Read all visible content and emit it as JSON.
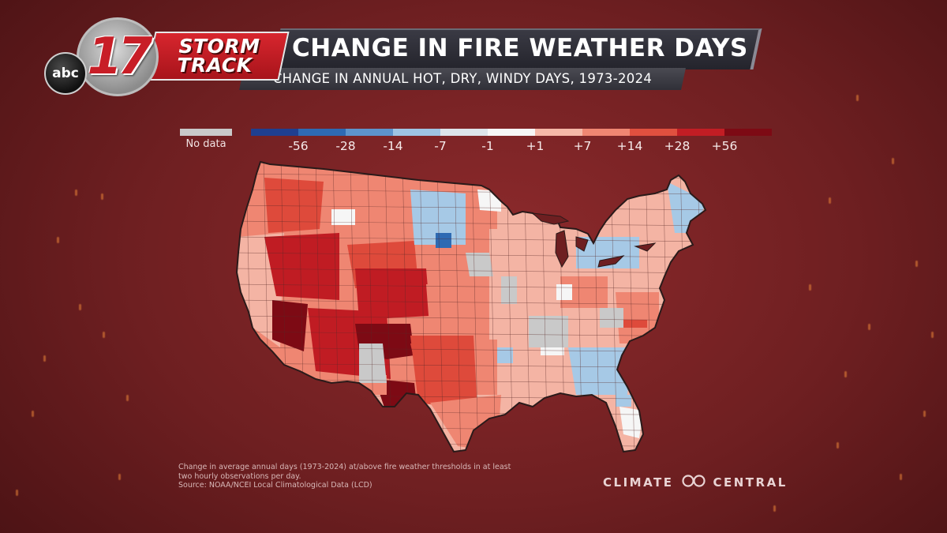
{
  "header": {
    "network_logo": "abc",
    "channel_number": "17",
    "brand_line1": "STORM",
    "brand_line2": "TRACK",
    "title": "CHANGE IN FIRE WEATHER DAYS",
    "subtitle": "CHANGE IN ANNUAL HOT, DRY, WINDY DAYS, 1973-2024"
  },
  "legend": {
    "no_data": {
      "label": "No data",
      "color": "#c9c9c9"
    },
    "scale": [
      {
        "label": "-56",
        "color": "#1f3f8f"
      },
      {
        "label": "-28",
        "color": "#2e6ab3"
      },
      {
        "label": "-14",
        "color": "#5d94cc"
      },
      {
        "label": "-7",
        "color": "#9ec4e3"
      },
      {
        "label": "-1",
        "color": "#dde4ea"
      },
      {
        "label": "+1",
        "color": "#f6f6f6"
      },
      {
        "label": "+7",
        "color": "#f5b8a8"
      },
      {
        "label": "+14",
        "color": "#ef8672"
      },
      {
        "label": "+28",
        "color": "#e0503f"
      },
      {
        "label": "+56",
        "color": "#c21d24"
      },
      {
        "label": "",
        "color": "#7d0a14"
      }
    ]
  },
  "map": {
    "region": "Contiguous United States",
    "colors": {
      "hot_west": "#c01c23",
      "darkest": "#7d0a14",
      "red": "#de4a3b",
      "salmon": "#ef8672",
      "light": "#f4b4a4",
      "gray": "#c9c9c9",
      "white": "#f6f6f6",
      "lightblue": "#a6c9e6",
      "blue": "#2e6ab3",
      "border": "#2a1a1a"
    }
  },
  "footer": {
    "note_line1": "Change in average annual days (1973-2024) at/above fire weather thresholds in at least",
    "note_line2": "two hourly observations per day.",
    "source": "Source: NOAA/NCEI Local Climatological Data (LCD)",
    "org_left": "CLIMATE",
    "org_right": "CENTRAL",
    "org_icon": "infinity-icon"
  }
}
